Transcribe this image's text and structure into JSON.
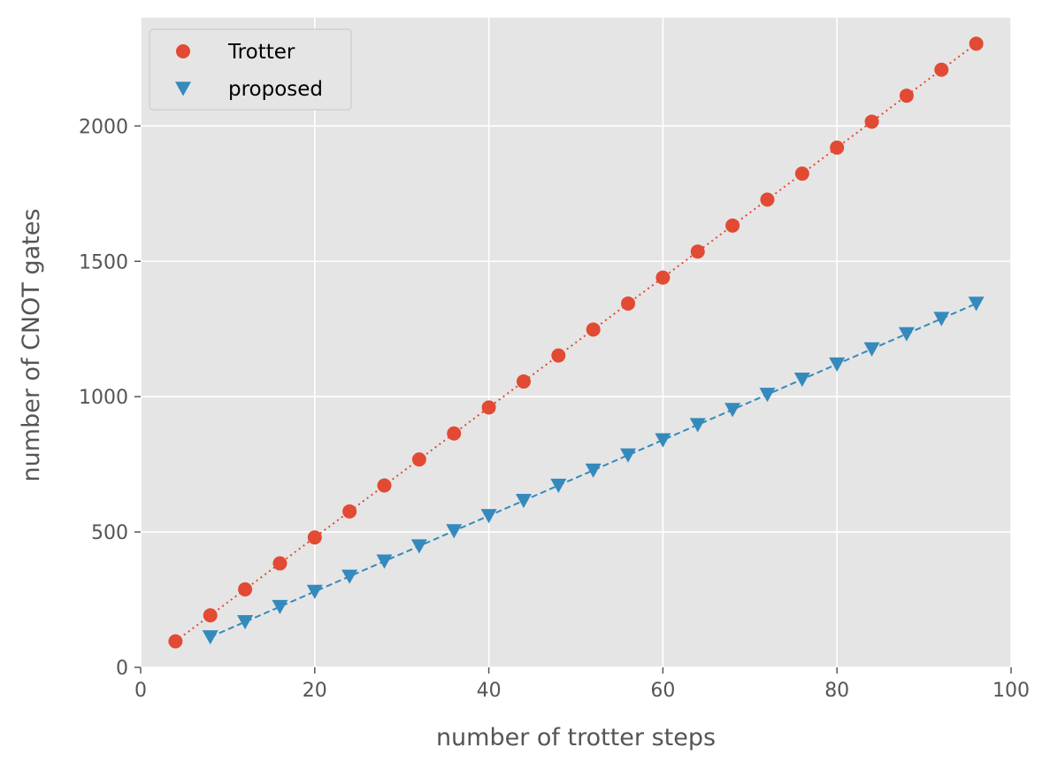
{
  "chart_data": {
    "type": "scatter",
    "title": "",
    "xlabel": "number of trotter steps",
    "ylabel": "number of CNOT gates",
    "xlim": [
      0,
      100
    ],
    "ylim": [
      0,
      2400
    ],
    "xticks": [
      0,
      20,
      40,
      60,
      80,
      100
    ],
    "yticks": [
      0,
      500,
      1000,
      1500,
      2000
    ],
    "grid": true,
    "legend_position": "top-left",
    "series": [
      {
        "name": "Trotter",
        "color": "#E24A33",
        "marker": "circle",
        "line_style": "dotted",
        "x": [
          4,
          8,
          12,
          16,
          20,
          24,
          28,
          32,
          36,
          40,
          44,
          48,
          52,
          56,
          60,
          64,
          68,
          72,
          76,
          80,
          84,
          88,
          92,
          96
        ],
        "y": [
          96,
          192,
          288,
          384,
          480,
          576,
          672,
          768,
          864,
          960,
          1056,
          1152,
          1248,
          1344,
          1440,
          1536,
          1632,
          1728,
          1824,
          1920,
          2016,
          2112,
          2208,
          2304
        ]
      },
      {
        "name": "proposed",
        "color": "#348ABD",
        "marker": "triangle-down",
        "line_style": "dashed",
        "x": [
          8,
          12,
          16,
          20,
          24,
          28,
          32,
          36,
          40,
          44,
          48,
          52,
          56,
          60,
          64,
          68,
          72,
          76,
          80,
          84,
          88,
          92,
          96
        ],
        "y": [
          112,
          168,
          224,
          280,
          336,
          392,
          448,
          504,
          560,
          616,
          672,
          728,
          784,
          840,
          896,
          952,
          1008,
          1064,
          1120,
          1176,
          1232,
          1288,
          1344
        ]
      }
    ]
  }
}
